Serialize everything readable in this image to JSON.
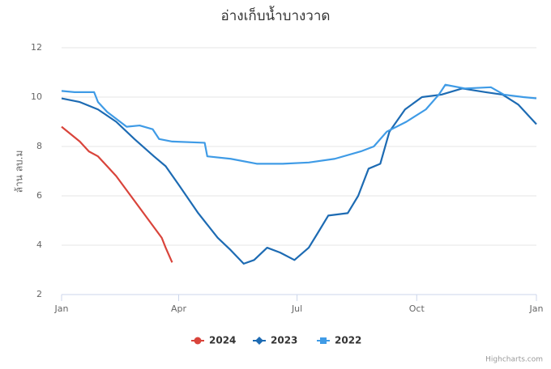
{
  "chart_data": {
    "type": "line",
    "title": "อ่างเก็บน้ำบางวาด",
    "y_label": "ล้าน ลบ.ม",
    "credits": "Highcharts.com",
    "xlim": [
      0,
      365
    ],
    "xticks": [
      {
        "value": 0,
        "label": "Jan"
      },
      {
        "value": 90,
        "label": "Apr"
      },
      {
        "value": 181,
        "label": "Jul"
      },
      {
        "value": 273,
        "label": "Oct"
      },
      {
        "value": 365,
        "label": "Jan"
      }
    ],
    "ylim": [
      2,
      12
    ],
    "yticks": [
      2,
      4,
      6,
      8,
      10,
      12
    ],
    "grid": true,
    "series": [
      {
        "name": "2024",
        "color": "#d9443b",
        "x": [
          0,
          7,
          14,
          21,
          28,
          35,
          42,
          49,
          56,
          63,
          70,
          77,
          80,
          85
        ],
        "values": [
          8.8,
          8.5,
          8.2,
          7.8,
          7.6,
          7.2,
          6.8,
          6.3,
          5.8,
          5.3,
          4.8,
          4.3,
          3.9,
          3.3
        ]
      },
      {
        "name": "2023",
        "color": "#1d6bb3",
        "x": [
          0,
          14,
          28,
          42,
          56,
          71,
          80,
          90,
          105,
          120,
          130,
          140,
          148,
          158,
          168,
          179,
          190,
          197,
          205,
          220,
          228,
          236,
          245,
          252,
          264,
          277,
          292,
          308,
          326,
          339,
          351,
          365
        ],
        "values": [
          9.95,
          9.8,
          9.5,
          9.0,
          8.3,
          7.6,
          7.2,
          6.45,
          5.3,
          4.3,
          3.8,
          3.25,
          3.4,
          3.9,
          3.7,
          3.4,
          3.9,
          4.5,
          5.2,
          5.3,
          6.0,
          7.1,
          7.3,
          8.6,
          9.5,
          10.0,
          10.1,
          10.35,
          10.2,
          10.1,
          9.7,
          8.9
        ]
      },
      {
        "name": "2022",
        "color": "#3f9be6",
        "x": [
          0,
          10,
          25,
          28,
          35,
          45,
          50,
          60,
          70,
          75,
          85,
          110,
          112,
          130,
          150,
          170,
          190,
          210,
          230,
          240,
          250,
          265,
          280,
          290,
          295,
          310,
          330,
          340,
          355,
          365
        ],
        "values": [
          10.25,
          10.2,
          10.2,
          9.8,
          9.4,
          9.0,
          8.8,
          8.85,
          8.7,
          8.3,
          8.2,
          8.15,
          7.6,
          7.5,
          7.3,
          7.3,
          7.35,
          7.5,
          7.8,
          8.0,
          8.6,
          9.0,
          9.5,
          10.1,
          10.5,
          10.35,
          10.4,
          10.1,
          10.0,
          9.95
        ]
      }
    ]
  }
}
